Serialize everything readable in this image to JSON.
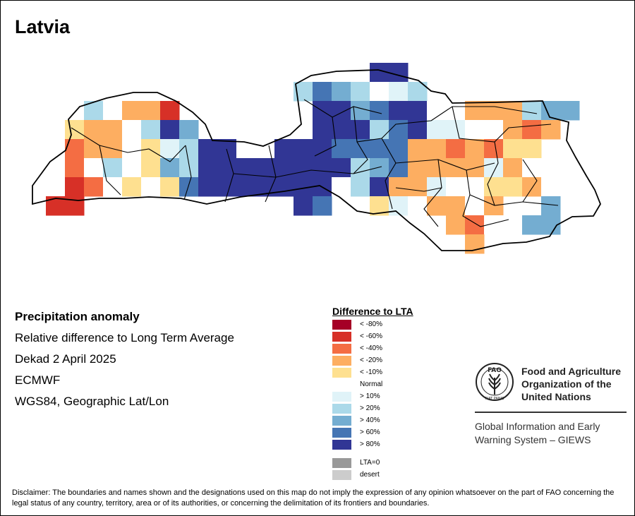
{
  "map": {
    "title": "Latvia",
    "colors": {
      "border": "#000000",
      "cell_classes": {
        "lt_-80": "#a50026",
        "lt_-60": "#d73027",
        "lt_-40": "#f46d43",
        "lt_-20": "#fdae61",
        "lt_-10": "#fee090",
        "normal": "#ffffff",
        "gt_10": "#e0f3f8",
        "gt_20": "#abd9e9",
        "gt_40": "#74add1",
        "gt_60": "#4575b4",
        "gt_80": "#313695"
      }
    }
  },
  "info": {
    "heading": "Precipitation anomaly",
    "line1": "Relative difference to Long Term Average",
    "line2": "Dekad 2 April 2025",
    "line3": "ECMWF",
    "line4": "WGS84, Geographic Lat/Lon"
  },
  "legend": {
    "title": "Difference to LTA",
    "items": [
      {
        "label": "< -80%",
        "color": "#a50026"
      },
      {
        "label": "< -60%",
        "color": "#d73027"
      },
      {
        "label": "< -40%",
        "color": "#f46d43"
      },
      {
        "label": "< -20%",
        "color": "#fdae61"
      },
      {
        "label": "< -10%",
        "color": "#fee090"
      },
      {
        "label": "Normal",
        "color": "#ffffff"
      },
      {
        "label": "> 10%",
        "color": "#e0f3f8"
      },
      {
        "label": "> 20%",
        "color": "#abd9e9"
      },
      {
        "label": "> 40%",
        "color": "#74add1"
      },
      {
        "label": "> 60%",
        "color": "#4575b4"
      },
      {
        "label": "> 80%",
        "color": "#313695"
      },
      {
        "label": "LTA=0",
        "color": "#999999"
      },
      {
        "label": "desert",
        "color": "#cccccc"
      }
    ]
  },
  "organization": {
    "name_line1": "Food and Agriculture",
    "name_line2": "Organization of the",
    "name_line3": "United Nations",
    "logo_letters": "FAO",
    "logo_motto": "FIAT PANIS",
    "system_line1": "Global Information and Early",
    "system_line2": "Warning System – GIEWS"
  },
  "disclaimer": "Disclaimer: The boundaries and names shown and the designations used on this map do not imply the expression of any opinion whatsoever on the part of FAO concerning the legal status of any country, territory, area or of its authorities, or concerning the delimitation of its frontiers and boundaries."
}
